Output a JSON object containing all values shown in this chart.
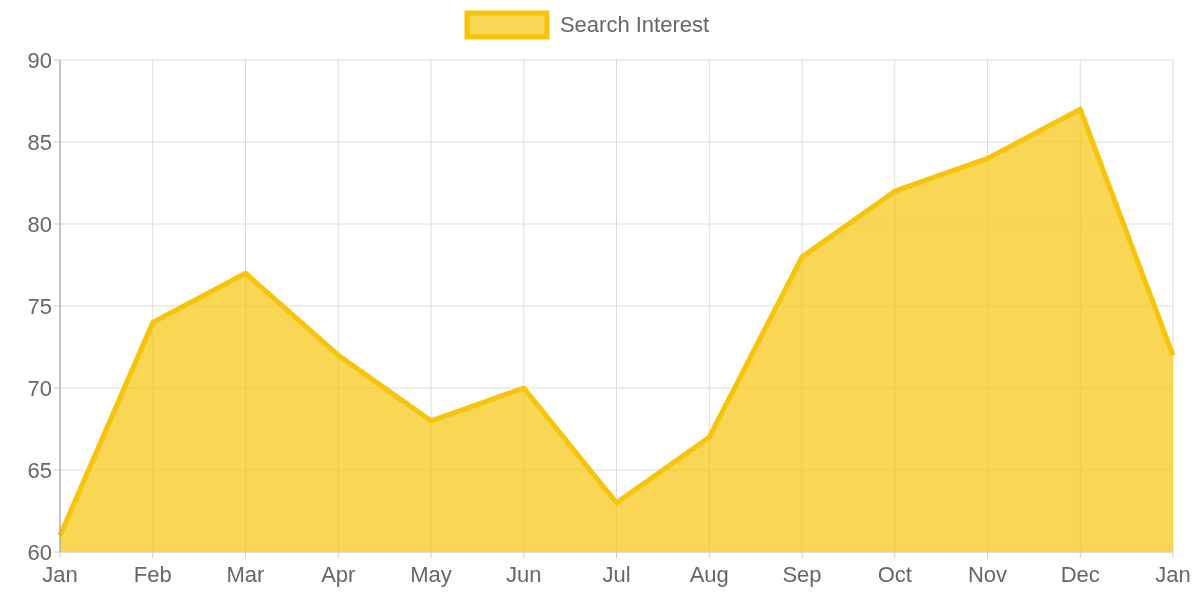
{
  "chart_data": {
    "type": "area",
    "categories": [
      "Jan",
      "Feb",
      "Mar",
      "Apr",
      "May",
      "Jun",
      "Jul",
      "Aug",
      "Sep",
      "Oct",
      "Nov",
      "Dec",
      "Jan"
    ],
    "series": [
      {
        "name": "Search Interest",
        "color": "#f7c40a",
        "values": [
          61,
          74,
          77,
          72,
          68,
          70,
          63,
          67,
          78,
          82,
          84,
          87,
          72
        ]
      }
    ],
    "ylim": [
      60,
      90
    ],
    "yticks": [
      60,
      65,
      70,
      75,
      80,
      85,
      90
    ],
    "grid": true,
    "legend": "top",
    "marker": "none"
  }
}
